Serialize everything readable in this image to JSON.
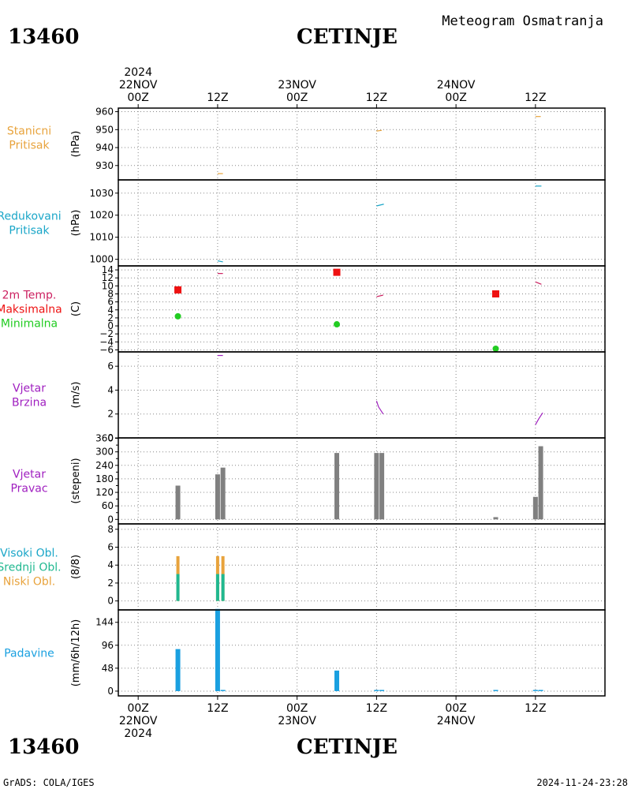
{
  "station_id": "13460",
  "station_name": "CETINJE",
  "product_title": "Meteogram Osmatranja",
  "footer_left": "GrADS: COLA/IGES",
  "footer_right": "2024-11-24-23:28",
  "colors": {
    "pressure_station": "#e8a33c",
    "pressure_reduced": "#1aa6c8",
    "temp_label": "#cc2060",
    "temp_max": "#ee1111",
    "temp_min": "#22cc22",
    "wind": "#a020c0",
    "wind_dir": "#808080",
    "high_cloud": "#1aa6c8",
    "mid_cloud": "#20b890",
    "low_cloud": "#e8a33c",
    "precip": "#1aa0e0"
  },
  "time_axis": {
    "top": [
      {
        "hour": 0,
        "lines": [
          "2024",
          "22NOV",
          "00Z"
        ]
      },
      {
        "hour": 12,
        "lines": [
          "12Z"
        ]
      },
      {
        "hour": 24,
        "lines": [
          "23NOV",
          "00Z"
        ]
      },
      {
        "hour": 36,
        "lines": [
          "12Z"
        ]
      },
      {
        "hour": 48,
        "lines": [
          "24NOV",
          "00Z"
        ]
      },
      {
        "hour": 60,
        "lines": [
          "12Z"
        ]
      }
    ],
    "bottom": [
      {
        "hour": 0,
        "lines": [
          "00Z",
          "22NOV",
          "2024"
        ]
      },
      {
        "hour": 12,
        "lines": [
          "12Z"
        ]
      },
      {
        "hour": 24,
        "lines": [
          "00Z",
          "23NOV"
        ]
      },
      {
        "hour": 36,
        "lines": [
          "12Z"
        ]
      },
      {
        "hour": 48,
        "lines": [
          "00Z",
          "24NOV"
        ]
      },
      {
        "hour": 60,
        "lines": [
          "12Z"
        ]
      }
    ],
    "range_hours": [
      -3,
      70.5
    ]
  },
  "chart_data": [
    {
      "type": "line",
      "panel": "station_pressure",
      "labels": [
        {
          "text": "Stanicni",
          "color": "pressure_station"
        },
        {
          "text": "Pritisak",
          "color": "pressure_station"
        }
      ],
      "ylabel": "(hPa)",
      "ylim": [
        922,
        962
      ],
      "yticks": [
        930,
        940,
        950,
        960
      ],
      "series": [
        {
          "color": "pressure_station",
          "segments": [
            [
              [
                12,
                925.5
              ],
              [
                12.8,
                925.5
              ]
            ],
            [
              [
                36,
                949.2
              ],
              [
                36.8,
                949.6
              ]
            ],
            [
              [
                60,
                957.3
              ],
              [
                60.8,
                957.3
              ]
            ]
          ]
        }
      ]
    },
    {
      "type": "line",
      "panel": "reduced_pressure",
      "labels": [
        {
          "text": "Redukovani",
          "color": "pressure_reduced"
        },
        {
          "text": "Pritisak",
          "color": "pressure_reduced"
        }
      ],
      "ylabel": "(hPa)",
      "ylim": [
        997,
        1036
      ],
      "yticks": [
        1000,
        1010,
        1020,
        1030
      ],
      "series": [
        {
          "color": "pressure_reduced",
          "segments": [
            [
              [
                12,
                999.3
              ],
              [
                12.8,
                998.8
              ]
            ],
            [
              [
                36,
                1024.2
              ],
              [
                37.1,
                1025
              ]
            ],
            [
              [
                60,
                1033.2
              ],
              [
                60.9,
                1033.2
              ]
            ]
          ]
        }
      ]
    },
    {
      "type": "scatter",
      "panel": "temperature",
      "labels": [
        {
          "text": "2m Temp.",
          "color": "temp_label"
        },
        {
          "text": "Maksimalna",
          "color": "temp_max"
        },
        {
          "text": "Minimalna",
          "color": "temp_min"
        }
      ],
      "ylabel": "(C)",
      "ylim": [
        -6.5,
        15
      ],
      "yticks": [
        -6,
        -4,
        -2,
        0,
        2,
        4,
        6,
        8,
        10,
        12,
        14
      ],
      "series": [
        {
          "color": "temp_label",
          "kind": "line",
          "segments": [
            [
              [
                12,
                13.1
              ],
              [
                12.8,
                13.1
              ]
            ],
            [
              [
                36,
                7.3
              ],
              [
                37,
                7.7
              ]
            ],
            [
              [
                60,
                11
              ],
              [
                60.9,
                10.4
              ]
            ]
          ]
        },
        {
          "color": "temp_max",
          "kind": "square",
          "points": [
            [
              6,
              9
            ],
            [
              30,
              13.4
            ],
            [
              54,
              8
            ]
          ]
        },
        {
          "color": "temp_min",
          "kind": "circle",
          "points": [
            [
              6,
              2.4
            ],
            [
              30,
              0.4
            ],
            [
              54,
              -5.7
            ]
          ]
        }
      ]
    },
    {
      "type": "line",
      "panel": "wind_speed",
      "labels": [
        {
          "text": "Vjetar",
          "color": "wind"
        },
        {
          "text": "Brzina",
          "color": "wind"
        }
      ],
      "ylabel": "(m/s)",
      "ylim": [
        0,
        7.2
      ],
      "yticks": [
        0,
        2,
        4,
        6
      ],
      "series": [
        {
          "color": "wind",
          "segments": [
            [
              [
                12,
                6.9
              ],
              [
                12.8,
                6.9
              ]
            ],
            [
              [
                36,
                3.1
              ],
              [
                36.3,
                2.6
              ],
              [
                37,
                2
              ]
            ],
            [
              [
                60,
                1.1
              ],
              [
                60.5,
                1.6
              ],
              [
                61.1,
                2.1
              ]
            ]
          ]
        }
      ]
    },
    {
      "type": "bar",
      "panel": "wind_direction",
      "labels": [
        {
          "text": "Vjetar",
          "color": "wind"
        },
        {
          "text": "Pravac",
          "color": "wind"
        }
      ],
      "ylabel": "(stepeni)",
      "ylim": [
        -20,
        362
      ],
      "yticks": [
        0,
        60,
        120,
        180,
        240,
        300,
        360
      ],
      "extra_ticks": [
        30,
        90,
        150,
        210,
        270,
        330
      ],
      "series": [
        {
          "color": "wind_dir",
          "bars": [
            [
              6,
              150
            ],
            [
              12,
              200
            ],
            [
              12.8,
              230
            ],
            [
              30,
              295
            ],
            [
              36,
              295
            ],
            [
              36.8,
              295
            ],
            [
              54,
              10
            ],
            [
              60,
              100
            ],
            [
              60.8,
              325
            ]
          ]
        }
      ]
    },
    {
      "type": "bar",
      "panel": "clouds",
      "labels": [
        {
          "text": "Visoki Obl.",
          "color": "high_cloud"
        },
        {
          "text": "Srednji Obl.",
          "color": "mid_cloud"
        },
        {
          "text": "Niski Obl.",
          "color": "low_cloud"
        }
      ],
      "ylabel": "(8/8)",
      "ylim": [
        -1,
        8.6
      ],
      "yticks": [
        0,
        2,
        4,
        6,
        8
      ],
      "series": [
        {
          "name": "Niski Obl.",
          "color": "low_cloud",
          "bars": [
            [
              6,
              5
            ],
            [
              12,
              5
            ],
            [
              12.8,
              5
            ]
          ]
        },
        {
          "name": "Srednji Obl.",
          "color": "mid_cloud",
          "bars": [
            [
              6,
              3
            ],
            [
              12,
              3
            ],
            [
              12.8,
              3
            ]
          ]
        }
      ]
    },
    {
      "type": "bar",
      "panel": "precipitation",
      "labels": [
        {
          "text": "Padavine",
          "color": "precip"
        }
      ],
      "ylabel": "(mm/6h/12h)",
      "ylim": [
        -10,
        170
      ],
      "yticks": [
        0,
        48,
        96,
        144
      ],
      "series": [
        {
          "color": "precip",
          "bars": [
            [
              6,
              88
            ],
            [
              12,
              172
            ],
            [
              12.8,
              1
            ],
            [
              30,
              43
            ],
            [
              36,
              1
            ],
            [
              36.8,
              1
            ],
            [
              54,
              1
            ],
            [
              60,
              1
            ],
            [
              60.8,
              1
            ]
          ]
        }
      ]
    }
  ]
}
